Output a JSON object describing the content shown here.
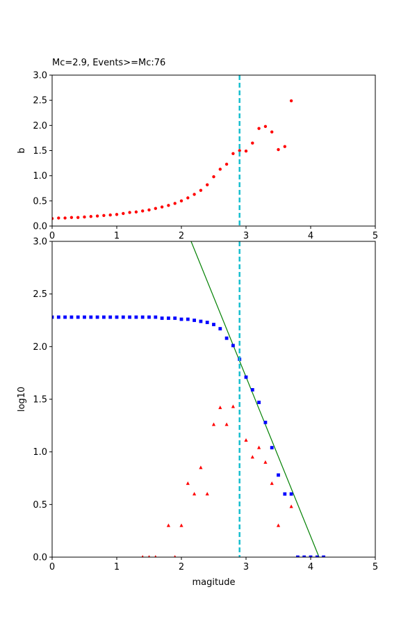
{
  "chart_data": [
    {
      "type": "scatter",
      "title": "Mc=2.9, Events>=Mc:76",
      "xlabel": "",
      "ylabel": "b",
      "xlim": [
        0,
        5
      ],
      "ylim": [
        0,
        3
      ],
      "xticks": [
        "0",
        "1",
        "2",
        "3",
        "4",
        "5"
      ],
      "yticks": [
        "0.0",
        "0.5",
        "1.0",
        "1.5",
        "2.0",
        "2.5",
        "3.0"
      ],
      "grid": false,
      "series": [
        {
          "marker": "circle",
          "color": "#ff0000",
          "x": [
            0.0,
            0.1,
            0.2,
            0.3,
            0.4,
            0.5,
            0.6,
            0.7,
            0.8,
            0.9,
            1.0,
            1.1,
            1.2,
            1.3,
            1.4,
            1.5,
            1.6,
            1.7,
            1.8,
            1.9,
            2.0,
            2.1,
            2.2,
            2.3,
            2.4,
            2.5,
            2.6,
            2.7,
            2.8,
            2.9,
            3.0,
            3.1,
            3.2,
            3.3,
            3.4,
            3.5,
            3.6,
            3.7
          ],
          "y": [
            0.15,
            0.16,
            0.16,
            0.17,
            0.17,
            0.18,
            0.19,
            0.2,
            0.21,
            0.22,
            0.23,
            0.25,
            0.27,
            0.28,
            0.3,
            0.32,
            0.35,
            0.38,
            0.41,
            0.45,
            0.5,
            0.56,
            0.63,
            0.71,
            0.82,
            0.98,
            1.13,
            1.23,
            1.44,
            1.5,
            1.49,
            1.65,
            1.94,
            1.98,
            1.87,
            1.52,
            1.58,
            2.49
          ]
        }
      ],
      "reference_lines": [
        {
          "orientation": "vertical",
          "x": 2.9,
          "style": "dashed",
          "color": "#17becf"
        }
      ]
    },
    {
      "type": "scatter",
      "title": "",
      "xlabel": "magitude",
      "ylabel": "log10",
      "xlim": [
        0,
        5
      ],
      "ylim": [
        0,
        3
      ],
      "xticks": [
        "0",
        "1",
        "2",
        "3",
        "4",
        "5"
      ],
      "yticks": [
        "0.0",
        "0.5",
        "1.0",
        "1.5",
        "2.0",
        "2.5",
        "3.0"
      ],
      "grid": false,
      "series": [
        {
          "marker": "square",
          "color": "#0000ff",
          "x": [
            0.0,
            0.1,
            0.2,
            0.3,
            0.4,
            0.5,
            0.6,
            0.7,
            0.8,
            0.9,
            1.0,
            1.1,
            1.2,
            1.3,
            1.4,
            1.5,
            1.6,
            1.7,
            1.8,
            1.9,
            2.0,
            2.1,
            2.2,
            2.3,
            2.4,
            2.5,
            2.6,
            2.7,
            2.8,
            2.9,
            3.0,
            3.1,
            3.2,
            3.3,
            3.4,
            3.5,
            3.6,
            3.7,
            3.8,
            3.9,
            4.0,
            4.1,
            4.2
          ],
          "y": [
            2.28,
            2.28,
            2.28,
            2.28,
            2.28,
            2.28,
            2.28,
            2.28,
            2.28,
            2.28,
            2.28,
            2.28,
            2.28,
            2.28,
            2.28,
            2.28,
            2.28,
            2.27,
            2.27,
            2.27,
            2.26,
            2.26,
            2.25,
            2.24,
            2.23,
            2.21,
            2.17,
            2.08,
            2.01,
            1.88,
            1.71,
            1.59,
            1.47,
            1.28,
            1.04,
            0.78,
            0.6,
            0.6,
            0.0,
            0.0,
            0.0,
            0.0,
            0.0
          ]
        },
        {
          "marker": "triangle",
          "color": "#ff0000",
          "x": [
            1.4,
            1.5,
            1.6,
            1.8,
            1.9,
            2.0,
            2.1,
            2.2,
            2.3,
            2.4,
            2.5,
            2.6,
            2.7,
            2.8,
            3.0,
            3.1,
            3.2,
            3.3,
            3.4,
            3.5,
            3.7
          ],
          "y": [
            0.0,
            0.0,
            0.0,
            0.3,
            0.0,
            0.3,
            0.7,
            0.6,
            0.85,
            0.6,
            1.26,
            1.42,
            1.26,
            1.43,
            1.11,
            0.95,
            1.04,
            0.9,
            0.7,
            0.3,
            0.48
          ]
        }
      ],
      "fit_line": {
        "color": "#008000",
        "points": [
          [
            2.15,
            3.0
          ],
          [
            4.13,
            0.0
          ]
        ]
      },
      "reference_lines": [
        {
          "orientation": "vertical",
          "x": 2.9,
          "style": "dashed",
          "color": "#17becf"
        }
      ]
    }
  ]
}
